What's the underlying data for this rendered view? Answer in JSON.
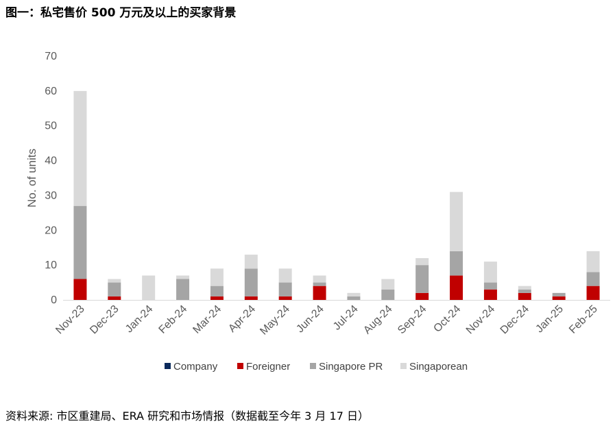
{
  "header": {
    "title": "图一：私宅售价 500 万元及以上的买家背景"
  },
  "footer": {
    "source": "资料来源: 市区重建局、ERA 研究和市场情报（数据截至今年 3 月 17 日）"
  },
  "chart_data": {
    "type": "bar",
    "stacked": true,
    "title": "",
    "xlabel": "",
    "ylabel": "No. of units",
    "ylim": [
      0,
      70
    ],
    "yticks": [
      0,
      10,
      20,
      30,
      40,
      50,
      60,
      70
    ],
    "grid": false,
    "legend_position": "bottom",
    "categories": [
      "Nov-23",
      "Dec-23",
      "Jan-24",
      "Feb-24",
      "Mar-24",
      "Apr-24",
      "May-24",
      "Jun-24",
      "Jul-24",
      "Aug-24",
      "Sep-24",
      "Oct-24",
      "Nov-24",
      "Dec-24",
      "Jan-25",
      "Feb-25"
    ],
    "series": [
      {
        "name": "Company",
        "color": "#0b2a5b",
        "values": [
          0,
          0,
          0,
          0,
          0,
          0,
          0,
          0,
          0,
          0,
          0,
          0,
          0,
          0,
          0,
          0
        ]
      },
      {
        "name": "Foreigner",
        "color": "#c00000",
        "values": [
          6,
          1,
          0,
          0,
          1,
          1,
          1,
          4,
          0,
          0,
          2,
          7,
          3,
          2,
          1,
          4
        ]
      },
      {
        "name": "Singapore PR",
        "color": "#a5a5a5",
        "values": [
          21,
          4,
          0,
          6,
          3,
          8,
          4,
          1,
          1,
          3,
          8,
          7,
          2,
          1,
          1,
          4
        ]
      },
      {
        "name": "Singaporean",
        "color": "#d9d9d9",
        "values": [
          33,
          1,
          7,
          1,
          5,
          4,
          4,
          2,
          1,
          3,
          2,
          17,
          6,
          1,
          0,
          6
        ]
      }
    ]
  }
}
